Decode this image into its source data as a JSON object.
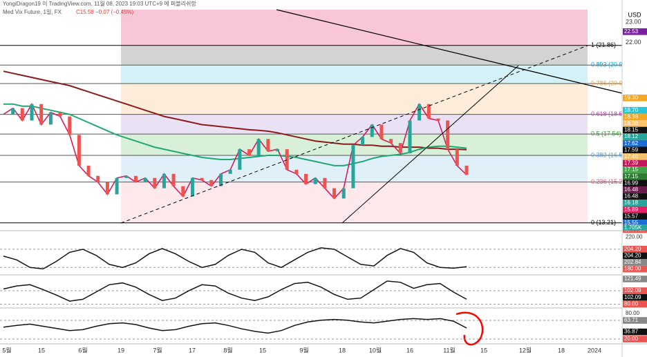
{
  "header": {
    "publisher": "YongiDragon19 이 TradingView.com, 11월 08, 2023 19:03 UTC+9 에 퍼블리쉬함",
    "symbol": "Med Vix Future, 1일, FX",
    "quote": "C15.58 −0.07 (−0.45%)",
    "currency": "USD"
  },
  "price_panel": {
    "ylim": [
      12.9,
      23.4
    ],
    "axis_ticks": [
      {
        "value": 23,
        "label": "23.00"
      },
      {
        "value": 22,
        "label": "22.00"
      },
      {
        "value": 15,
        "label": "15.00"
      },
      {
        "value": 14,
        "label": "14.00"
      }
    ],
    "fib_levels": [
      {
        "value": 21.86,
        "label": "1 (21.86)",
        "band": "#c8c8c8"
      },
      {
        "value": 20.9,
        "label": "0.893 (20.9",
        "band": "#c9eef5"
      },
      {
        "value": 20.0,
        "label": "0.786 (20.0",
        "band": "#fbe7cf"
      },
      {
        "value": 18.5,
        "label": "0.618 (18.5",
        "band": "#e6d9f3"
      },
      {
        "value": 17.54,
        "label": "0.5 (17.54)",
        "band": "#cdeccd"
      },
      {
        "value": 16.5,
        "label": "0.382 (16.5",
        "band": "#d8ecf7"
      },
      {
        "value": 15.2,
        "label": "0.236 (15.2",
        "band": "#fde4e7"
      },
      {
        "value": 13.21,
        "label": "0 (13.21)",
        "band": null
      }
    ],
    "fib_label_colors": [
      "#000",
      "#00a5d6",
      "#f0a030",
      "#c040c0",
      "#2a9d2a",
      "#4aa0d8",
      "#e05070",
      "#000"
    ],
    "top_band": "#f8c6d6",
    "close": [
      18.5,
      18.8,
      18.2,
      19.0,
      18.0,
      18.6,
      18.4,
      17.5,
      16.0,
      15.5,
      15.2,
      14.6,
      15.4,
      15.5,
      15.2,
      15.4,
      14.9,
      15.6,
      15.0,
      14.5,
      15.4,
      15.3,
      15.0,
      15.6,
      15.8,
      16.8,
      16.5,
      17.3,
      16.7,
      16.8,
      15.8,
      15.6,
      15.1,
      15.4,
      14.9,
      14.4,
      14.9,
      17.0,
      17.4,
      18.0,
      17.3,
      17.1,
      16.6,
      18.2,
      19.0,
      18.3,
      18.2,
      16.8,
      16.0,
      15.55
    ],
    "ma_long": [
      20.6,
      20.5,
      20.4,
      20.3,
      20.2,
      20.1,
      20.0,
      19.9,
      19.75,
      19.6,
      19.45,
      19.3,
      19.15,
      19.0,
      18.85,
      18.7,
      18.55,
      18.4,
      18.3,
      18.2,
      18.1,
      18.0,
      17.95,
      17.9,
      17.85,
      17.8,
      17.75,
      17.72,
      17.68,
      17.6,
      17.5,
      17.4,
      17.3,
      17.2,
      17.15,
      17.1,
      17.05,
      17.05,
      17.0,
      17.0,
      16.95,
      16.95,
      16.9,
      16.9,
      16.9,
      16.85,
      16.85,
      16.8,
      16.8,
      16.78
    ],
    "ma_mid": [
      19.0,
      19.0,
      18.9,
      18.9,
      18.8,
      18.7,
      18.6,
      18.5,
      18.3,
      18.1,
      17.9,
      17.7,
      17.5,
      17.35,
      17.2,
      17.05,
      16.9,
      16.8,
      16.7,
      16.6,
      16.5,
      16.4,
      16.35,
      16.3,
      16.3,
      16.35,
      16.4,
      16.45,
      16.5,
      16.5,
      16.45,
      16.4,
      16.3,
      16.2,
      16.1,
      16.0,
      16.0,
      16.1,
      16.2,
      16.35,
      16.45,
      16.5,
      16.55,
      16.65,
      16.8,
      16.9,
      16.95,
      16.95,
      16.9,
      16.85
    ],
    "ma_colors": [
      "#8b1a1a",
      "#1fa870"
    ],
    "close_color": "#d81b60",
    "right_labels": [
      {
        "value": 22.53,
        "label": "22.53",
        "bg": "#7b1fa2"
      },
      {
        "value": 19.3,
        "label": "19.30",
        "bg": "#f5a623"
      },
      {
        "value": 18.7,
        "label": "18.70",
        "bg": "#26c6da"
      },
      {
        "value": 18.38,
        "label": "18.38",
        "bg": "#f5a623"
      },
      {
        "value": 18.38,
        "label": "18.38",
        "bg": "#fbc36b"
      },
      {
        "value": 18.15,
        "label": "18.15",
        "bg": "#111"
      },
      {
        "value": 18.12,
        "label": "18.12",
        "bg": "#26a69a"
      },
      {
        "value": 17.62,
        "label": "17.62",
        "bg": "#1e6bd6"
      },
      {
        "value": 17.59,
        "label": "17.59",
        "bg": "#111"
      },
      {
        "value": 17.46,
        "label": "17.46",
        "bg": "#f5c26b"
      },
      {
        "value": 17.39,
        "label": "17.39",
        "bg": "#c2185b"
      },
      {
        "value": 17.15,
        "label": "17.15",
        "bg": "#43a047"
      },
      {
        "value": 17.15,
        "label": "17.15",
        "bg": "#2e7d32"
      },
      {
        "value": 16.99,
        "label": "16.99",
        "bg": "#111"
      },
      {
        "value": 16.48,
        "label": "16.48",
        "bg": "#6a1b4d"
      },
      {
        "value": 16.48,
        "label": "16.48",
        "bg": "#111"
      },
      {
        "value": 16.18,
        "label": "16.18",
        "bg": "#26a69a"
      },
      {
        "value": 15.89,
        "label": "15.89",
        "bg": "#e91e63"
      },
      {
        "value": 15.57,
        "label": "15.57",
        "bg": "#111"
      },
      {
        "value": 15.55,
        "label": "15.55",
        "bg": "#1e6bd6"
      },
      {
        "value": 15.55,
        "label": "11:56:29",
        "bg": "#ef5350"
      }
    ],
    "volume_label": "1.705K"
  },
  "oscillators": [
    {
      "ylim": [
        172,
        226
      ],
      "levels": [
        204.2,
        180
      ],
      "ticks": [
        {
          "value": 220,
          "label": "220.00"
        }
      ],
      "series": [
        195,
        190,
        180,
        178,
        188,
        200,
        204,
        196,
        184,
        180,
        186,
        198,
        205,
        198,
        188,
        180,
        184,
        196,
        204,
        200,
        186,
        180,
        190,
        200,
        206,
        204,
        194,
        184,
        182,
        196,
        205,
        200,
        186,
        180,
        179,
        181
      ],
      "labels": [
        {
          "value": 204.2,
          "label": "204.20",
          "bg": "#ef5350"
        },
        {
          "value": 204.2,
          "label": "204.20",
          "bg": "#111"
        },
        {
          "value": 202.84,
          "label": "202.84",
          "bg": "#888"
        },
        {
          "value": 180,
          "label": "180.00",
          "bg": "#ef5350"
        }
      ]
    },
    {
      "ylim": [
        76,
        126
      ],
      "levels": [
        102.09,
        80
      ],
      "ticks": [
        {
          "value": 120,
          "label": "120.00"
        }
      ],
      "series": [
        105,
        110,
        112,
        104,
        95,
        85,
        88,
        100,
        112,
        115,
        108,
        96,
        86,
        90,
        102,
        112,
        110,
        98,
        90,
        86,
        92,
        104,
        114,
        116,
        108,
        96,
        88,
        90,
        104,
        118,
        116,
        106,
        112,
        114,
        100,
        88
      ],
      "labels": [
        {
          "value": 121.49,
          "label": "121.49",
          "bg": "#888"
        },
        {
          "value": 102.09,
          "label": "102.09",
          "bg": "#ef5350"
        },
        {
          "value": 102.09,
          "label": "102.09",
          "bg": "#111"
        },
        {
          "value": 80,
          "label": "80.00",
          "bg": "#ef5350"
        }
      ]
    },
    {
      "ylim": [
        12,
        88
      ],
      "levels": [
        63.71,
        20
      ],
      "ticks": [
        {
          "value": 80,
          "label": "80.00"
        },
        {
          "value": 20,
          "label": "20.00"
        }
      ],
      "series": [
        48,
        52,
        55,
        50,
        45,
        40,
        42,
        50,
        56,
        58,
        54,
        46,
        40,
        42,
        50,
        56,
        58,
        52,
        44,
        38,
        34,
        40,
        52,
        60,
        64,
        66,
        64,
        60,
        58,
        62,
        66,
        68,
        66,
        68,
        62,
        46
      ],
      "labels": [
        {
          "value": 63.71,
          "label": "63.71",
          "bg": "#888"
        },
        {
          "value": 36.87,
          "label": "36.87",
          "bg": "#111"
        },
        {
          "value": 20,
          "label": "20.00",
          "bg": "#ef5350"
        }
      ]
    }
  ],
  "time_axis": [
    "5월",
    "15",
    "6월",
    "19",
    "7월",
    "17",
    "8월",
    "15",
    "9월",
    "18",
    "10월",
    "16",
    "11월",
    "15",
    "12월",
    "18",
    "2024"
  ]
}
